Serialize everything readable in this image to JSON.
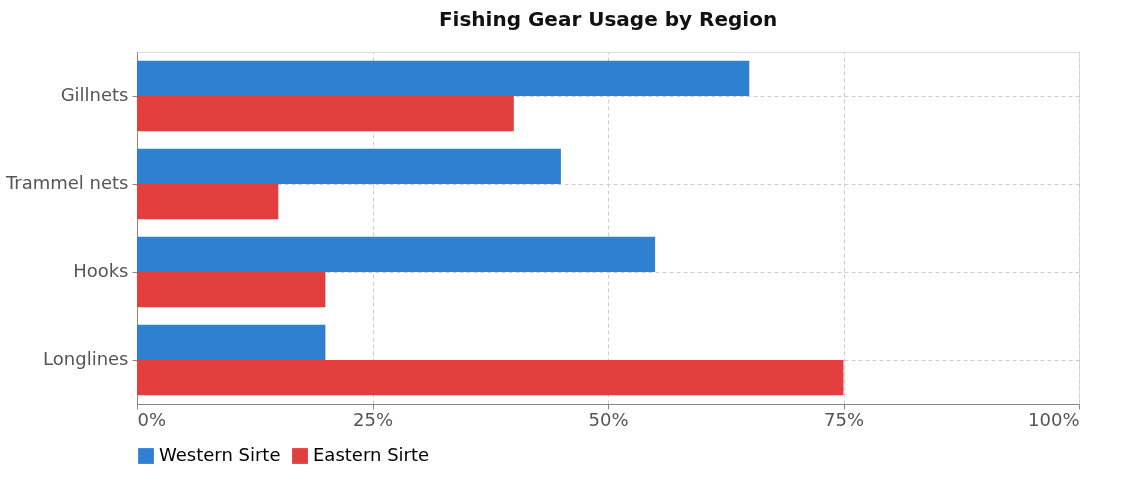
{
  "chart_data": {
    "type": "bar",
    "orientation": "horizontal",
    "title": "Fishing Gear Usage by Region",
    "categories": [
      "Gillnets",
      "Trammel nets",
      "Hooks",
      "Longlines"
    ],
    "series": [
      {
        "name": "Western Sirte",
        "color": "#2f80d1",
        "values": [
          65,
          45,
          55,
          20
        ]
      },
      {
        "name": "Eastern Sirte",
        "color": "#e23e3e",
        "values": [
          40,
          15,
          20,
          75
        ]
      }
    ],
    "xlim": [
      0,
      100
    ],
    "xticks": [
      {
        "value": 0,
        "label": "0%"
      },
      {
        "value": 25,
        "label": "25%"
      },
      {
        "value": 50,
        "label": "50%"
      },
      {
        "value": 75,
        "label": "75%"
      },
      {
        "value": 100,
        "label": "100%"
      }
    ],
    "grid": true,
    "legend": "bottom"
  }
}
